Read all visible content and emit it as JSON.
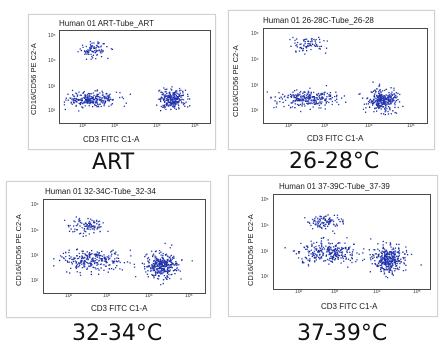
{
  "chart_data": [
    {
      "type": "scatter",
      "title": "Human 01 ART-Tube_ART",
      "caption": "ART",
      "xlabel": "CD3 FITC C1-A",
      "ylabel": "CD16/CD56 PE C2-A",
      "x_scale": "log",
      "y_scale": "log",
      "x_ticks": [
        "10²",
        "10³",
        "10⁴",
        "10⁵"
      ],
      "y_ticks": [
        "10⁵",
        "10⁴",
        "10³",
        "10²"
      ],
      "populations": [
        {
          "x": 200,
          "y": 30000,
          "sx": 0.18,
          "sy": 0.16,
          "n": 90
        },
        {
          "x": 180,
          "y": 300,
          "sx": 0.3,
          "sy": 0.14,
          "n": 260
        },
        {
          "x": 18000,
          "y": 300,
          "sx": 0.16,
          "sy": 0.18,
          "n": 260
        }
      ]
    },
    {
      "type": "scatter",
      "title": "Human 01 26-28C-Tube_26-28",
      "caption": "26-28°C",
      "xlabel": "CD3 FITC C1-A",
      "ylabel": "CD16/CD56 PE C2-A",
      "x_scale": "log",
      "y_scale": "log",
      "x_ticks": [
        "10²",
        "10³",
        "10⁴",
        "10⁵"
      ],
      "y_ticks": [
        "10⁵",
        "10⁴",
        "10³",
        "10²"
      ],
      "populations": [
        {
          "x": 300,
          "y": 40000,
          "sx": 0.2,
          "sy": 0.15,
          "n": 80
        },
        {
          "x": 300,
          "y": 300,
          "sx": 0.35,
          "sy": 0.16,
          "n": 260
        },
        {
          "x": 15000,
          "y": 250,
          "sx": 0.17,
          "sy": 0.22,
          "n": 300
        }
      ]
    },
    {
      "type": "scatter",
      "title": "Human 01 32-34C-Tube_32-34",
      "caption": "32-34°C",
      "xlabel": "CD3 FITC C1-A",
      "ylabel": "CD16/CD56 PE C2-A",
      "x_scale": "log",
      "y_scale": "log",
      "x_ticks": [
        "10²",
        "10³",
        "10⁴",
        "10⁵"
      ],
      "y_ticks": [
        "10⁵",
        "10⁴",
        "10³",
        "10²"
      ],
      "populations": [
        {
          "x": 300,
          "y": 15000,
          "sx": 0.2,
          "sy": 0.15,
          "n": 100
        },
        {
          "x": 400,
          "y": 700,
          "sx": 0.35,
          "sy": 0.22,
          "n": 260
        },
        {
          "x": 16000,
          "y": 400,
          "sx": 0.18,
          "sy": 0.25,
          "n": 330
        }
      ]
    },
    {
      "type": "scatter",
      "title": "Human 01 37-39C-Tube_37-39",
      "caption": "37-39°C",
      "xlabel": "CD3 FITC C1-A",
      "ylabel": "CD16/CD56 PE C2-A",
      "x_scale": "log",
      "y_scale": "log",
      "x_ticks": [
        "10²",
        "10³",
        "10⁴",
        "10⁵"
      ],
      "y_ticks": [
        "10⁵",
        "10⁴",
        "10³",
        "10²"
      ],
      "populations": [
        {
          "x": 500,
          "y": 15000,
          "sx": 0.2,
          "sy": 0.15,
          "n": 100
        },
        {
          "x": 600,
          "y": 900,
          "sx": 0.35,
          "sy": 0.22,
          "n": 270
        },
        {
          "x": 16000,
          "y": 500,
          "sx": 0.18,
          "sy": 0.25,
          "n": 330
        }
      ]
    }
  ],
  "colors": {
    "dot": "#2b3fbf",
    "dot_dense": "#1a2a9a"
  }
}
